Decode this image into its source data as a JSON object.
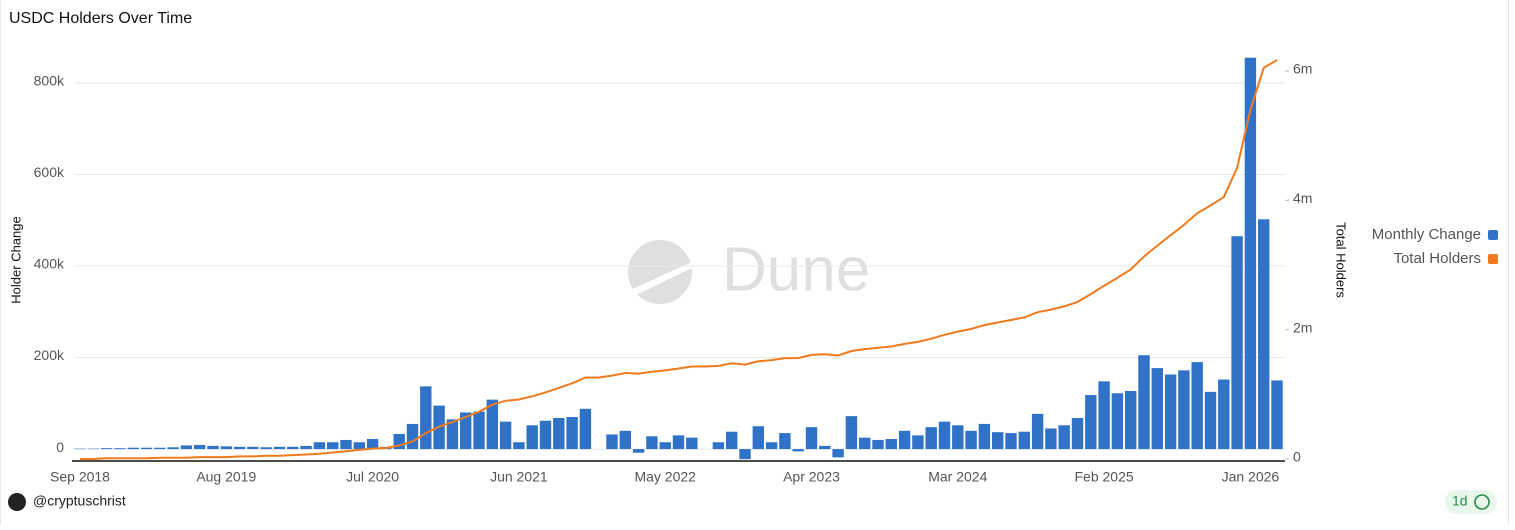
{
  "chart_data": {
    "type": "bar_line",
    "title": "USDC Holders Over Time",
    "y_label": "Holder Change",
    "y2_label": "Total Holders",
    "watermark": "Dune",
    "author": "@cryptuschrist",
    "refresh": "1d",
    "legend_position": "right",
    "grid": true,
    "categories": [
      "Sep 2018",
      null,
      null,
      null,
      null,
      null,
      null,
      null,
      null,
      null,
      null,
      "Aug 2019",
      null,
      null,
      null,
      null,
      null,
      null,
      null,
      null,
      null,
      null,
      "Jul 2020",
      null,
      null,
      null,
      null,
      null,
      null,
      null,
      null,
      null,
      null,
      "Jun 2021",
      null,
      null,
      null,
      null,
      null,
      null,
      null,
      null,
      null,
      null,
      "May 2022",
      null,
      null,
      null,
      null,
      null,
      null,
      null,
      null,
      null,
      null,
      "Apr 2023",
      null,
      null,
      null,
      null,
      null,
      null,
      null,
      null,
      null,
      null,
      "Mar 2024",
      null,
      null,
      null,
      null,
      null,
      null,
      null,
      null,
      null,
      null,
      "Feb 2025",
      null,
      null,
      null,
      null,
      null,
      null,
      null,
      null,
      null,
      null,
      "Jan 2026",
      null,
      null
    ],
    "ylim": [
      -26000,
      850000
    ],
    "yticks": [
      0,
      {
        "value": 200000,
        "label": "200k"
      },
      {
        "value": 400000,
        "label": "400k"
      },
      {
        "value": 600000,
        "label": "600k"
      },
      {
        "value": 800000,
        "label": "800k"
      }
    ],
    "y2lim": [
      -31000,
      6170000
    ],
    "y2ticks": [
      0,
      {
        "value": 2000000,
        "label": "2m"
      },
      {
        "value": 4000000,
        "label": "4m"
      },
      {
        "value": 6000000,
        "label": "6m"
      }
    ],
    "series": [
      {
        "name": "Monthly Change",
        "color": "#2f72c8",
        "kind": "bar",
        "values": [
          1000,
          1000,
          2000,
          2000,
          3000,
          3000,
          3000,
          4000,
          8000,
          9000,
          7000,
          6000,
          5000,
          5000,
          4000,
          5000,
          5000,
          7000,
          15000,
          15000,
          20000,
          15000,
          22000,
          5000,
          33000,
          55000,
          137000,
          95000,
          65000,
          80000,
          82000,
          108000,
          60000,
          15000,
          52000,
          62000,
          68000,
          70000,
          88000,
          0,
          32000,
          40000,
          -8000,
          28000,
          15000,
          30000,
          25000,
          0,
          15000,
          38000,
          -22000,
          50000,
          15000,
          35000,
          -5000,
          48000,
          7000,
          -18000,
          72000,
          25000,
          20000,
          22000,
          40000,
          30000,
          48000,
          60000,
          52000,
          40000,
          55000,
          37000,
          35000,
          38000,
          77000,
          45000,
          52000,
          68000,
          118000,
          148000,
          122000,
          127000,
          205000,
          177000,
          163000,
          172000,
          190000,
          125000,
          152000,
          465000,
          855000,
          502000,
          150000
        ]
      },
      {
        "name": "Total Holders",
        "color": "#f07a1e",
        "kind": "line",
        "axis": "y2",
        "values": [
          0,
          0,
          10000,
          10000,
          10000,
          10000,
          20000,
          20000,
          20000,
          30000,
          30000,
          30000,
          40000,
          40000,
          50000,
          50000,
          60000,
          70000,
          80000,
          100000,
          120000,
          140000,
          160000,
          170000,
          210000,
          270000,
          400000,
          500000,
          570000,
          650000,
          730000,
          840000,
          900000,
          920000,
          970000,
          1030000,
          1100000,
          1170000,
          1260000,
          1260000,
          1290000,
          1330000,
          1320000,
          1350000,
          1370000,
          1400000,
          1430000,
          1430000,
          1440000,
          1480000,
          1460000,
          1510000,
          1530000,
          1560000,
          1560000,
          1610000,
          1620000,
          1600000,
          1670000,
          1700000,
          1720000,
          1740000,
          1780000,
          1810000,
          1860000,
          1920000,
          1970000,
          2010000,
          2070000,
          2110000,
          2150000,
          2190000,
          2270000,
          2310000,
          2360000,
          2430000,
          2550000,
          2680000,
          2800000,
          2930000,
          3130000,
          3300000,
          3460000,
          3620000,
          3800000,
          3920000,
          4050000,
          4500000,
          5400000,
          6050000,
          6170000
        ]
      }
    ]
  }
}
